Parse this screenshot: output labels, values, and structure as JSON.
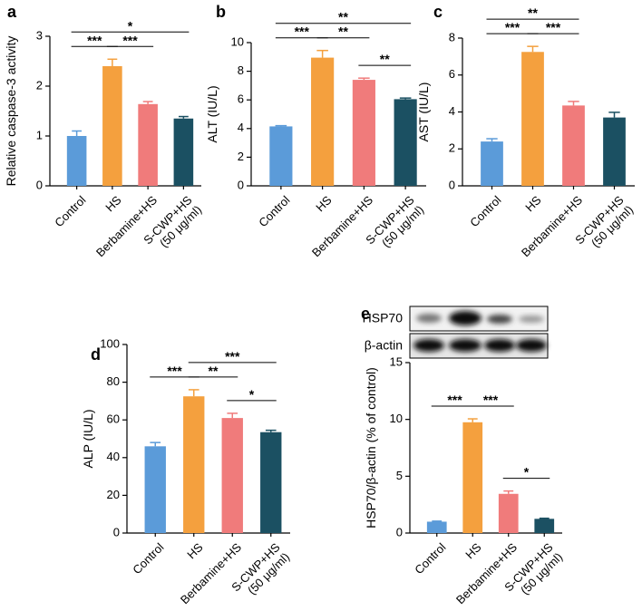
{
  "chart_data": [
    {
      "type": "bar",
      "panel": "a",
      "ylabel": "Relative caspase-3 activity",
      "categories": [
        "Control",
        "HS",
        "Berbamine+HS",
        "S-CWP+HS\n(50 μg/ml)"
      ],
      "values": [
        1.0,
        2.4,
        1.64,
        1.35
      ],
      "errors": [
        0.1,
        0.14,
        0.05,
        0.04
      ],
      "colors": [
        "#5b9bd9",
        "#f4a03e",
        "#f07b7b",
        "#1b5062"
      ],
      "ylim": [
        0,
        3
      ],
      "yticks": [
        0,
        1,
        2,
        3
      ],
      "significance": [
        {
          "groups": [
            "Control",
            "HS"
          ],
          "label": "***"
        },
        {
          "groups": [
            "HS",
            "Berbamine+HS"
          ],
          "label": "***"
        },
        {
          "groups": [
            "Control",
            "S-CWP+HS\n(50 μg/ml)"
          ],
          "label": "*"
        }
      ]
    },
    {
      "type": "bar",
      "panel": "b",
      "ylabel": "ALT (IU/L)",
      "categories": [
        "Control",
        "HS",
        "Berbamine+HS",
        "S-CWP+HS\n(50 μg/ml)"
      ],
      "values": [
        4.15,
        8.95,
        7.4,
        6.05
      ],
      "errors": [
        0.05,
        0.5,
        0.12,
        0.08
      ],
      "colors": [
        "#5b9bd9",
        "#f4a03e",
        "#f07b7b",
        "#1b5062"
      ],
      "ylim": [
        0,
        10
      ],
      "yticks": [
        0,
        2,
        4,
        6,
        8,
        10
      ],
      "significance": [
        {
          "groups": [
            "Control",
            "HS"
          ],
          "label": "***"
        },
        {
          "groups": [
            "HS",
            "Berbamine+HS"
          ],
          "label": "**"
        },
        {
          "groups": [
            "Berbamine+HS",
            "S-CWP+HS\n(50 μg/ml)"
          ],
          "label": "**"
        },
        {
          "groups": [
            "Control",
            "S-CWP+HS\n(50 μg/ml)"
          ],
          "label": "**"
        }
      ]
    },
    {
      "type": "bar",
      "panel": "c",
      "ylabel": "AST (IU/L)",
      "categories": [
        "Control",
        "HS",
        "Berbamine+HS",
        "S-CWP+HS\n(50 μg/ml)"
      ],
      "values": [
        2.4,
        7.25,
        4.35,
        3.7
      ],
      "errors": [
        0.15,
        0.3,
        0.22,
        0.28
      ],
      "colors": [
        "#5b9bd9",
        "#f4a03e",
        "#f07b7b",
        "#1b5062"
      ],
      "ylim": [
        0,
        8
      ],
      "yticks": [
        0,
        2,
        4,
        6,
        8
      ],
      "significance": [
        {
          "groups": [
            "Control",
            "HS"
          ],
          "label": "***"
        },
        {
          "groups": [
            "HS",
            "Berbamine+HS"
          ],
          "label": "***"
        },
        {
          "groups": [
            "Control",
            "Berbamine+HS"
          ],
          "label": "**"
        }
      ]
    },
    {
      "type": "bar",
      "panel": "d",
      "ylabel": "ALP (IU/L)",
      "categories": [
        "Control",
        "HS",
        "Berbamine+HS",
        "S-CWP+HS\n(50 μg/ml)"
      ],
      "values": [
        46,
        72.5,
        61,
        53.5
      ],
      "errors": [
        2,
        3.5,
        2.5,
        1
      ],
      "colors": [
        "#5b9bd9",
        "#f4a03e",
        "#f07b7b",
        "#1b5062"
      ],
      "ylim": [
        0,
        100
      ],
      "yticks": [
        0,
        20,
        40,
        60,
        80,
        100
      ],
      "significance": [
        {
          "groups": [
            "Control",
            "HS"
          ],
          "label": "***"
        },
        {
          "groups": [
            "HS",
            "Berbamine+HS"
          ],
          "label": "**"
        },
        {
          "groups": [
            "Berbamine+HS",
            "S-CWP+HS\n(50 μg/ml)"
          ],
          "label": "*"
        },
        {
          "groups": [
            "HS",
            "S-CWP+HS\n(50 μg/ml)"
          ],
          "label": "***"
        }
      ]
    },
    {
      "type": "bar",
      "panel": "e",
      "ylabel": "HSP70/β-actin (% of control)",
      "blot_labels": [
        "HSP70",
        "β-actin"
      ],
      "categories": [
        "Control",
        "HS",
        "Berbamine+HS",
        "S-CWP+HS\n(50 μg/ml)"
      ],
      "values": [
        1.0,
        9.75,
        3.45,
        1.25
      ],
      "errors": [
        0.05,
        0.3,
        0.25,
        0.05
      ],
      "colors": [
        "#5b9bd9",
        "#f4a03e",
        "#f07b7b",
        "#1b5062"
      ],
      "ylim": [
        0,
        15
      ],
      "yticks": [
        0,
        5,
        10,
        15
      ],
      "significance": [
        {
          "groups": [
            "Control",
            "HS"
          ],
          "label": "***"
        },
        {
          "groups": [
            "HS",
            "Berbamine+HS"
          ],
          "label": "***"
        },
        {
          "groups": [
            "Berbamine+HS",
            "S-CWP+HS\n(50 μg/ml)"
          ],
          "label": "*"
        }
      ]
    }
  ]
}
